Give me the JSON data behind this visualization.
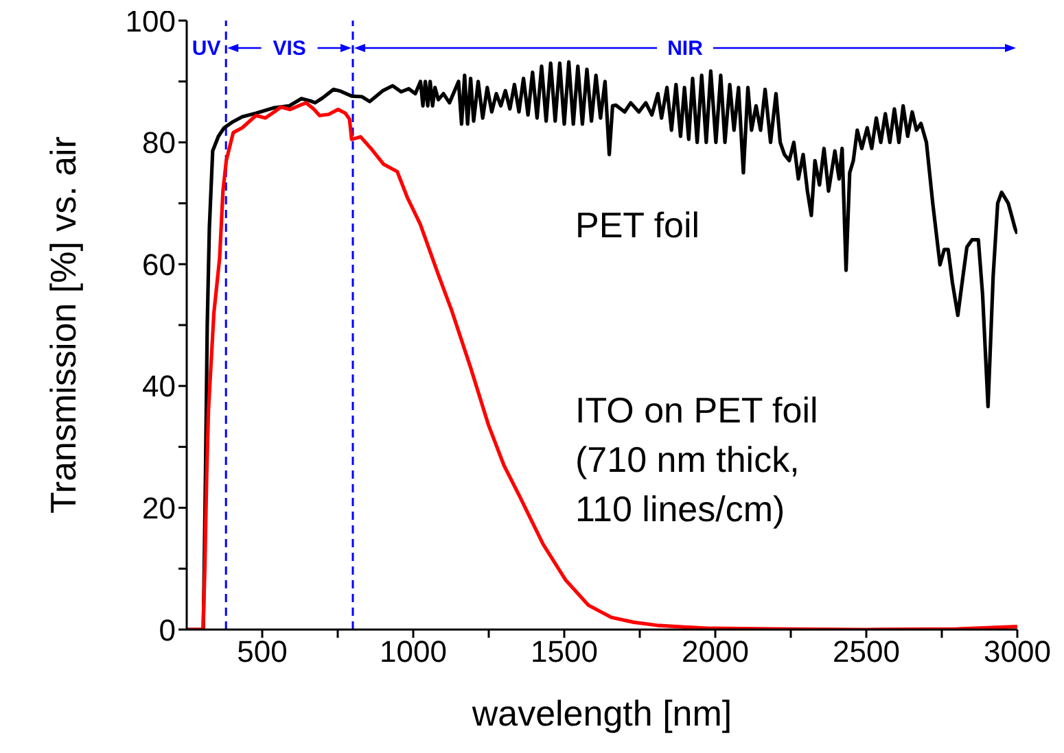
{
  "chart_data": {
    "type": "line",
    "xlabel": "wavelength [nm]",
    "ylabel": "Transmission [%] vs. air",
    "xlim": [
      250,
      3000
    ],
    "ylim": [
      0,
      100
    ],
    "xticks": [
      500,
      {
        "value": 750,
        "label": null
      },
      1000,
      {
        "value": 1250,
        "label": null
      },
      1500,
      {
        "value": 1750,
        "label": null
      },
      2000,
      {
        "value": 2250,
        "label": null
      },
      2500,
      {
        "value": 2750,
        "label": null
      },
      3000
    ],
    "yticks": [
      0,
      {
        "value": 10,
        "label": null
      },
      20,
      {
        "value": 30,
        "label": null
      },
      40,
      {
        "value": 50,
        "label": null
      },
      60,
      {
        "value": 70,
        "label": null
      },
      80,
      {
        "value": 90,
        "label": null
      },
      100
    ],
    "marker": "none",
    "line_style": "solid",
    "series": [
      {
        "name": "PET foil",
        "color": "#000000",
        "x": [
          250,
          290,
          305,
          312,
          318,
          325,
          336,
          355,
          374,
          400,
          434,
          480,
          540,
          590,
          630,
          660,
          675,
          700,
          736,
          760,
          796,
          830,
          856,
          900,
          932,
          960,
          985,
          1007,
          1024,
          1032,
          1040,
          1048,
          1056,
          1064,
          1072,
          1083,
          1100,
          1120,
          1150,
          1160,
          1170,
          1180,
          1190,
          1200,
          1215,
          1230,
          1245,
          1260,
          1275,
          1290,
          1305,
          1320,
          1335,
          1350,
          1365,
          1380,
          1395,
          1410,
          1425,
          1440,
          1455,
          1470,
          1485,
          1500,
          1515,
          1530,
          1545,
          1560,
          1575,
          1590,
          1605,
          1620,
          1635,
          1649,
          1660,
          1671,
          1700,
          1720,
          1747,
          1770,
          1790,
          1810,
          1822,
          1840,
          1855,
          1870,
          1885,
          1898,
          1912,
          1925,
          1940,
          1955,
          1970,
          1985,
          2002,
          2018,
          2032,
          2048,
          2062,
          2077,
          2093,
          2108,
          2120,
          2135,
          2150,
          2165,
          2183,
          2201,
          2215,
          2229,
          2245,
          2260,
          2275,
          2291,
          2305,
          2318,
          2330,
          2345,
          2360,
          2375,
          2396,
          2410,
          2420,
          2433,
          2445,
          2457,
          2470,
          2485,
          2503,
          2518,
          2533,
          2548,
          2563,
          2578,
          2593,
          2608,
          2622,
          2637,
          2652,
          2666,
          2681,
          2699,
          2720,
          2744,
          2758,
          2771,
          2785,
          2803,
          2820,
          2833,
          2850,
          2871,
          2885,
          2903,
          2920,
          2935,
          2948,
          2970,
          2993,
          3000
        ],
        "values": [
          0,
          0,
          0,
          25,
          50,
          66,
          78.6,
          81,
          82.4,
          83.3,
          84.2,
          84.8,
          85.7,
          86,
          87.2,
          86.8,
          86.5,
          87.3,
          88.7,
          88.4,
          87.6,
          87.5,
          86.7,
          88.5,
          89.3,
          88.3,
          88.8,
          88,
          90,
          86,
          90,
          86,
          90,
          86,
          89,
          87,
          88,
          86.5,
          90,
          83,
          91,
          83,
          90.5,
          83.5,
          90,
          84,
          89,
          85,
          88,
          86,
          88.5,
          85.5,
          89.5,
          85,
          90.5,
          84.5,
          91.5,
          84,
          92.5,
          83.5,
          93,
          83.5,
          93,
          83,
          93.2,
          83,
          92.5,
          83,
          92,
          83.5,
          91,
          84,
          90,
          78,
          86,
          86.1,
          85,
          86.5,
          85,
          86.5,
          84.5,
          88,
          84,
          89,
          82,
          89.5,
          81,
          89,
          80.5,
          90.5,
          80,
          91,
          80,
          91.7,
          80,
          91,
          80,
          89.5,
          82,
          89,
          75,
          89,
          82,
          86,
          82,
          88.7,
          80,
          88,
          80,
          78,
          77,
          80,
          74,
          78,
          72,
          68,
          77,
          73,
          79,
          72,
          78.6,
          74,
          79,
          59,
          75,
          77,
          82,
          79,
          82.4,
          79,
          84,
          80,
          84.7,
          80,
          85.5,
          80,
          86,
          81,
          85,
          82,
          83.1,
          80,
          70,
          59.9,
          62.4,
          62.4,
          57,
          51.6,
          58,
          62.8,
          64,
          64,
          55,
          36.6,
          58,
          70,
          71.8,
          70,
          65.8,
          65
        ]
      },
      {
        "name": "ITO on PET foil\n(710 nm thick,\n110 lines/cm)",
        "color": "#ff0000",
        "x": [
          250,
          304,
          310,
          316,
          322,
          340,
          359,
          370,
          381,
          404,
          434,
          479,
          510,
          540,
          562,
          592,
          620,
          645,
          670,
          690,
          720,
          751,
          775,
          789,
          796,
          826,
          860,
          902,
          947,
          980,
          1023,
          1083,
          1128,
          1190,
          1249,
          1300,
          1355,
          1430,
          1505,
          1580,
          1656,
          1730,
          1807,
          1900,
          1988,
          2200,
          2500,
          2800,
          3000
        ],
        "values": [
          0,
          0,
          10,
          25,
          36,
          52,
          61,
          72,
          77,
          81.6,
          82.4,
          84.4,
          84,
          85,
          85.8,
          85.4,
          86,
          86.5,
          85.5,
          84.4,
          84.6,
          85.4,
          84.8,
          83.8,
          80.5,
          80.9,
          79,
          76.4,
          75.2,
          71,
          66.6,
          58.3,
          52.3,
          43,
          33.6,
          27,
          21.6,
          14,
          8.1,
          4,
          2,
          1.2,
          0.7,
          0.4,
          0.2,
          0.1,
          0,
          0.1,
          0.5
        ]
      }
    ],
    "ref_lines": [
      {
        "axis": "x",
        "value": 380,
        "color": "#0000ff",
        "line_style": "dashed"
      },
      {
        "axis": "x",
        "value": 800,
        "color": "#0000ff",
        "line_style": "dashed"
      }
    ],
    "annotations": [
      "UV",
      "VIS",
      "NIR"
    ]
  }
}
